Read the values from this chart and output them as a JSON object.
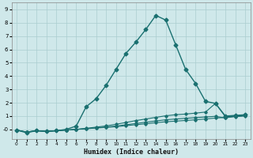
{
  "xlabel": "Humidex (Indice chaleur)",
  "xlim": [
    -0.5,
    23.5
  ],
  "ylim": [
    -0.7,
    9.5
  ],
  "yticks": [
    0,
    1,
    2,
    3,
    4,
    5,
    6,
    7,
    8,
    9
  ],
  "ytick_labels": [
    "-0",
    "1",
    "2",
    "3",
    "4",
    "5",
    "6",
    "7",
    "8",
    "9"
  ],
  "xticks": [
    0,
    1,
    2,
    3,
    4,
    5,
    6,
    7,
    8,
    9,
    10,
    11,
    12,
    13,
    14,
    15,
    16,
    17,
    18,
    19,
    20,
    21,
    22,
    23
  ],
  "bg_color": "#cfe8ea",
  "grid_color": "#aacdd0",
  "line_color": "#1a7070",
  "series": [
    {
      "x": [
        0,
        1,
        2,
        3,
        4,
        5,
        6,
        7,
        8,
        9,
        10,
        11,
        12,
        13,
        14,
        15,
        16,
        17,
        18,
        19,
        20,
        21,
        22,
        23
      ],
      "y": [
        -0.05,
        -0.2,
        -0.1,
        -0.15,
        -0.1,
        -0.05,
        -0.0,
        0.05,
        0.1,
        0.15,
        0.2,
        0.28,
        0.35,
        0.42,
        0.5,
        0.57,
        0.62,
        0.67,
        0.72,
        0.78,
        0.85,
        0.9,
        0.95,
        1.0
      ],
      "marker": "D",
      "markersize": 1.8,
      "linewidth": 0.8
    },
    {
      "x": [
        0,
        1,
        2,
        3,
        4,
        5,
        6,
        7,
        8,
        9,
        10,
        11,
        12,
        13,
        14,
        15,
        16,
        17,
        18,
        19,
        20,
        21,
        22,
        23
      ],
      "y": [
        -0.05,
        -0.2,
        -0.1,
        -0.15,
        -0.1,
        -0.05,
        0.0,
        0.05,
        0.12,
        0.18,
        0.25,
        0.35,
        0.44,
        0.54,
        0.63,
        0.72,
        0.78,
        0.83,
        0.88,
        0.93,
        0.98,
        0.85,
        1.0,
        1.05
      ],
      "marker": "D",
      "markersize": 1.8,
      "linewidth": 0.8
    },
    {
      "x": [
        0,
        1,
        2,
        3,
        4,
        5,
        6,
        7,
        8,
        9,
        10,
        11,
        12,
        13,
        14,
        15,
        16,
        17,
        18,
        19,
        20,
        21,
        22,
        23
      ],
      "y": [
        -0.05,
        -0.2,
        -0.1,
        -0.15,
        -0.1,
        -0.05,
        0.0,
        0.08,
        0.17,
        0.26,
        0.38,
        0.52,
        0.66,
        0.78,
        0.9,
        1.02,
        1.1,
        1.15,
        1.22,
        1.3,
        1.95,
        0.95,
        1.0,
        1.1
      ],
      "marker": "D",
      "markersize": 1.8,
      "linewidth": 0.8
    },
    {
      "x": [
        0,
        1,
        2,
        3,
        4,
        5,
        6,
        7,
        8,
        9,
        10,
        11,
        12,
        13,
        14,
        15,
        16,
        17,
        18,
        19,
        20,
        21,
        22,
        23
      ],
      "y": [
        -0.05,
        -0.25,
        -0.1,
        -0.15,
        -0.1,
        0.0,
        0.25,
        1.7,
        2.3,
        3.3,
        4.5,
        5.7,
        6.55,
        7.5,
        8.55,
        8.2,
        6.35,
        4.5,
        3.45,
        2.1,
        1.95,
        1.0,
        1.05,
        1.1
      ],
      "marker": "D",
      "markersize": 2.5,
      "linewidth": 1.0
    }
  ]
}
